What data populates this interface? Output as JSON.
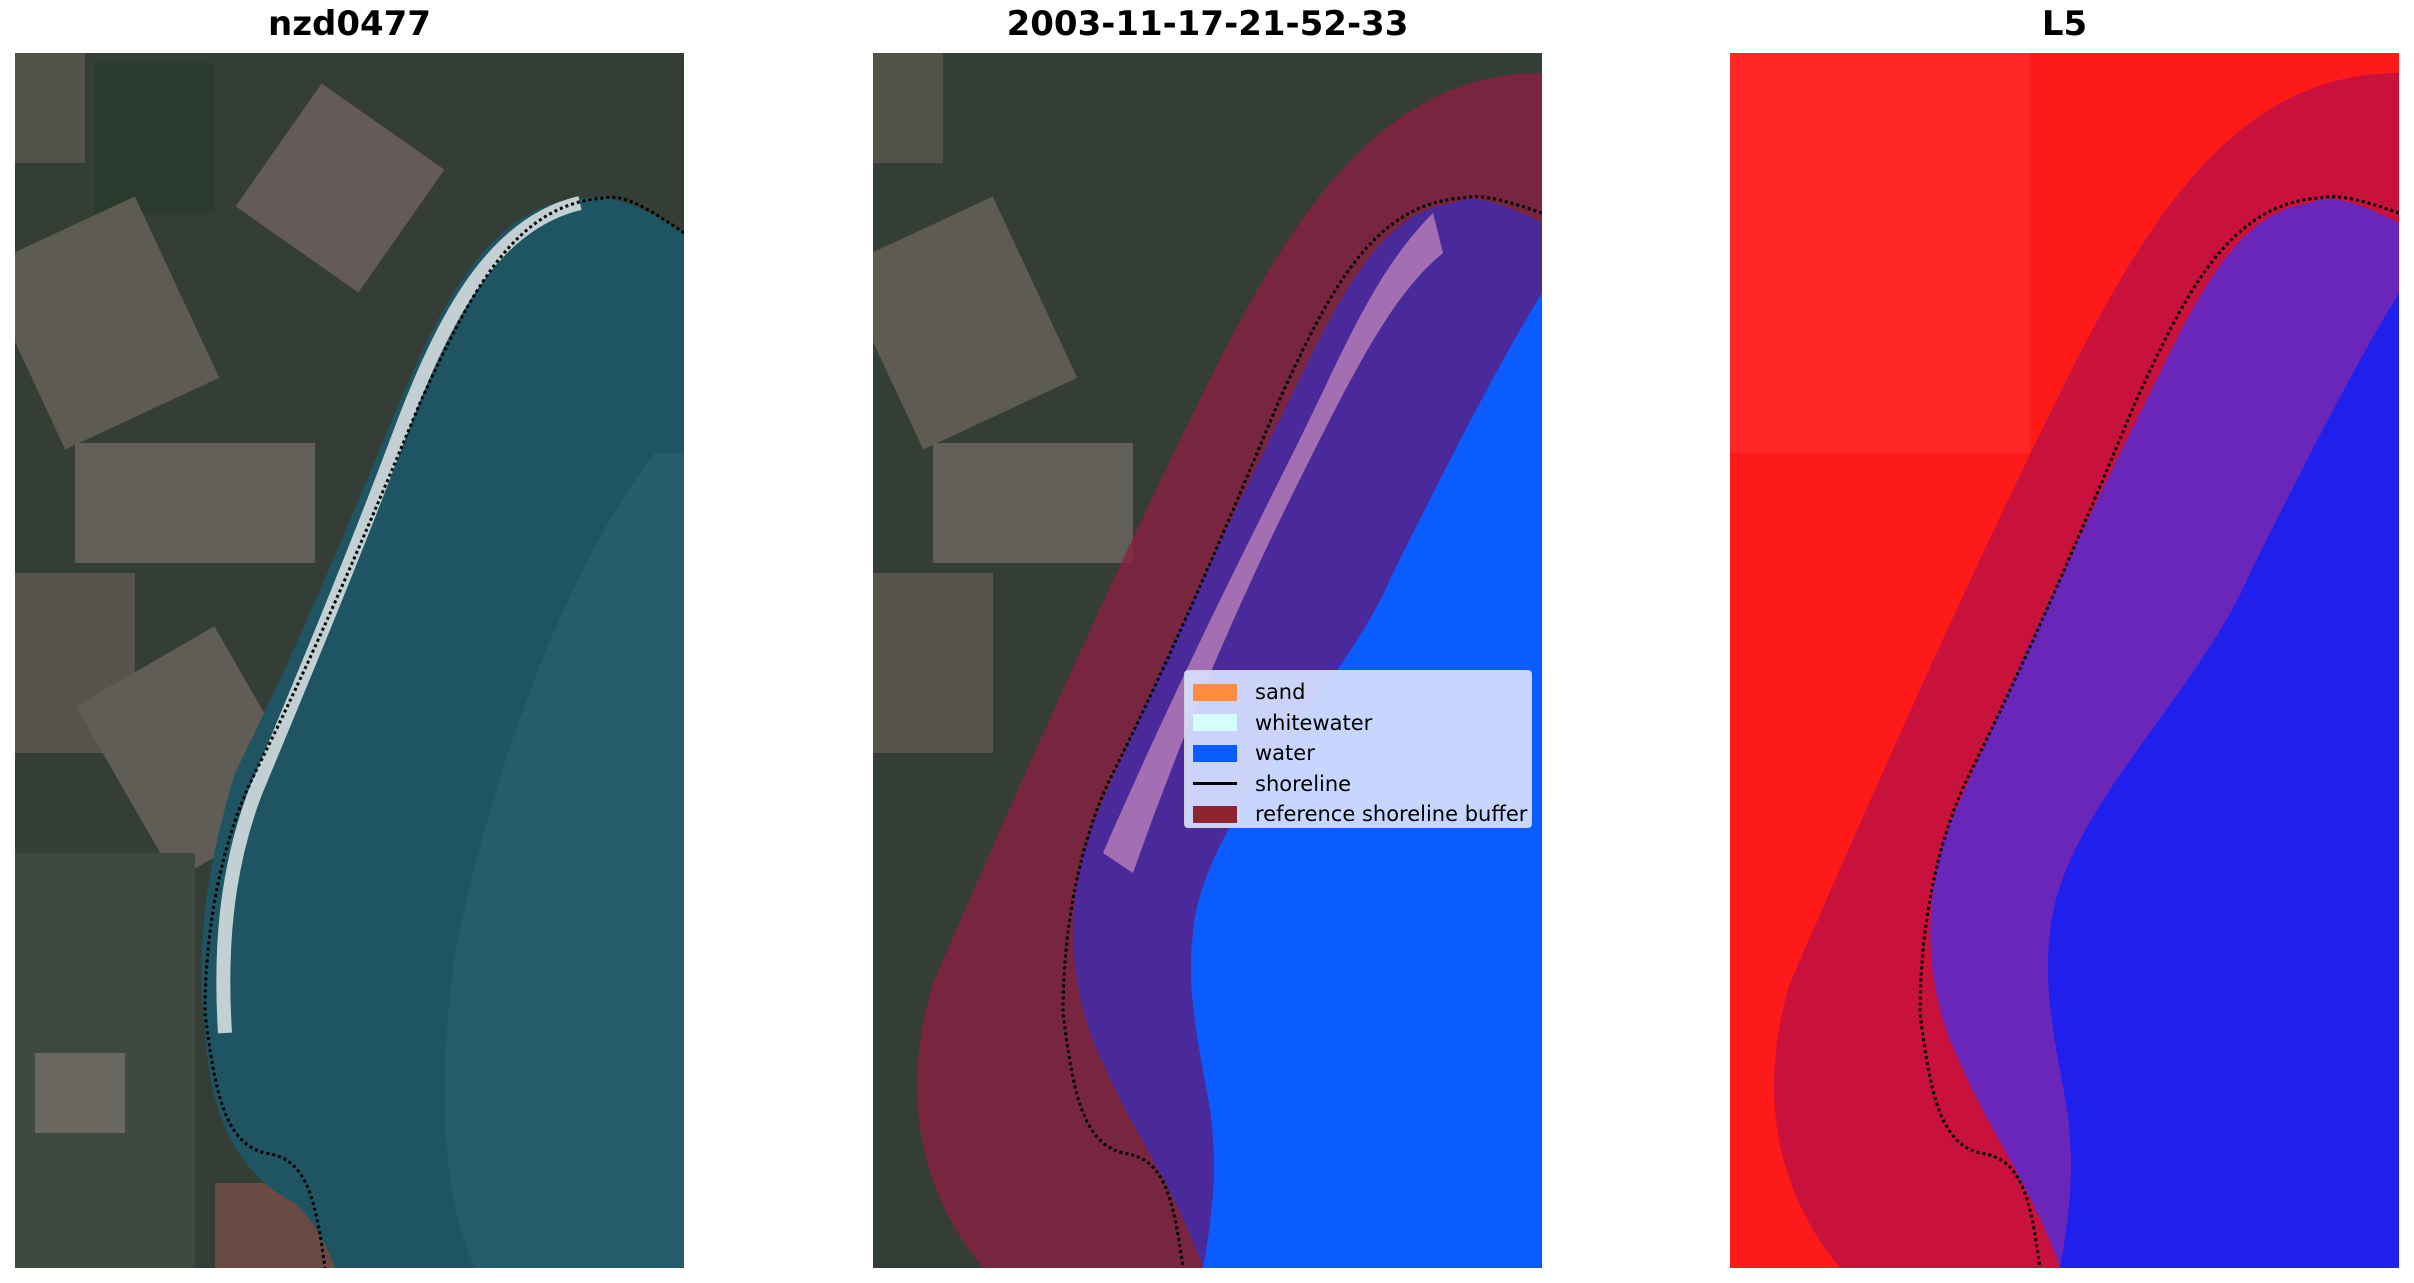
{
  "panels": [
    {
      "title": "nzd0477"
    },
    {
      "title": "2003-11-17-21-52-33"
    },
    {
      "title": "L5"
    }
  ],
  "legend": {
    "items": [
      {
        "label": "sand",
        "color": "#ff8c40",
        "kind": "patch"
      },
      {
        "label": "whitewater",
        "color": "#d4fffc",
        "kind": "patch"
      },
      {
        "label": "water",
        "color": "#0b5cff",
        "kind": "patch"
      },
      {
        "label": "shoreline",
        "color": "#000000",
        "kind": "line"
      },
      {
        "label": "reference shoreline buffer",
        "color": "#8e2430",
        "kind": "patch"
      }
    ]
  },
  "colors": {
    "land_dark": "#2e3a32",
    "sea": "#1f4f5e",
    "water_class": "#0b5cff",
    "buffer": "#8a1f44",
    "land_index": "#ff1a1a",
    "water_index": "#2020ee"
  }
}
